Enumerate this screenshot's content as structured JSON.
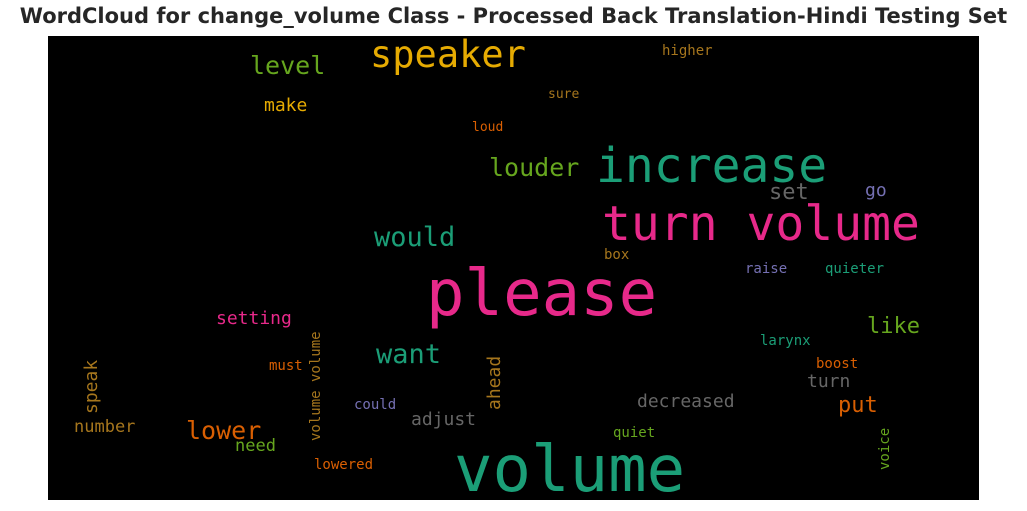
{
  "title": "WordCloud for change_volume Class - Processed Back Translation-Hindi Testing Set",
  "colors": {
    "teal": "#1b9e77",
    "pink": "#e7298a",
    "orange": "#d95f02",
    "gold": "#e6ab02",
    "green": "#66a61e",
    "brown": "#a6761d",
    "gray": "#666666",
    "purple": "#7570b3"
  },
  "words": {
    "speaker": "speaker",
    "level": "level",
    "make": "make",
    "higher": "higher",
    "sure": "sure",
    "loud": "loud",
    "louder": "louder",
    "increase": "increase",
    "set": "set",
    "go": "go",
    "turn_volume": "turn volume",
    "would": "would",
    "box": "box",
    "raise": "raise",
    "quieter": "quieter",
    "please": "please",
    "setting": "setting",
    "like": "like",
    "larynx": "larynx",
    "want": "want",
    "speak": "speak",
    "must": "must",
    "volume_volume": "volume volume",
    "ahead": "ahead",
    "boost": "boost",
    "turn": "turn",
    "decreased": "decreased",
    "put": "put",
    "could": "could",
    "adjust": "adjust",
    "number": "number",
    "lower": "lower",
    "quiet": "quiet",
    "need": "need",
    "voice": "voice",
    "lowered": "lowered",
    "volume": "volume"
  }
}
